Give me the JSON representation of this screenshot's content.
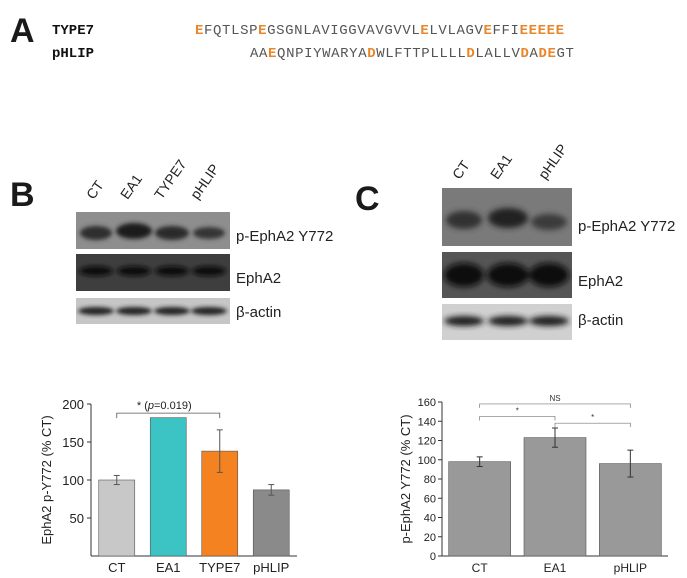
{
  "panel_a": {
    "letter": "A",
    "sequences": [
      {
        "name": "TYPE7",
        "residues": "EFQTLSPEGSGNLAVIGGVAVGVVLELVLAGVEFFIEEEEE",
        "highlight": [
          0,
          7,
          25,
          32,
          36,
          37,
          38,
          39,
          40
        ]
      },
      {
        "name": "pHLIP",
        "residues": "AAEQNPIYWARYADWLFTTPLLLLDLALLVDADEGT",
        "highlight": [
          2,
          13,
          24,
          30,
          32,
          33
        ]
      }
    ]
  },
  "panel_b": {
    "letter": "B",
    "lanes": [
      "CT",
      "EA1",
      "TYPE7",
      "pHLIP"
    ],
    "blot_labels": [
      "p-EphA2 Y772",
      "EphA2",
      "β-actin"
    ]
  },
  "panel_c": {
    "letter": "C",
    "lanes": [
      "CT",
      "EA1",
      "pHLIP"
    ],
    "blot_labels": [
      "p-EphA2 Y772",
      "EphA2",
      "β-actin"
    ]
  },
  "chart_data": [
    {
      "type": "bar",
      "panel": "B",
      "categories": [
        "CT",
        "EA1",
        "TYPE7",
        "pHLIP"
      ],
      "values": [
        100,
        182,
        138,
        87
      ],
      "errors": [
        6,
        0,
        28,
        7
      ],
      "colors": [
        "#c8c8c8",
        "#3cc3c3",
        "#f58220",
        "#8a8a8a"
      ],
      "ylabel": "EphA2 p-Y772 (% CT)",
      "ylim": [
        0,
        200
      ],
      "yticks": [
        50,
        100,
        150,
        200
      ],
      "annotation": {
        "star": "*",
        "prefix": "(",
        "italic": "p",
        "rest": "=0.019)"
      }
    },
    {
      "type": "bar",
      "panel": "C",
      "categories": [
        "CT",
        "EA1",
        "pHLIP"
      ],
      "values": [
        98,
        123,
        96
      ],
      "errors": [
        5,
        10,
        14
      ],
      "colors": [
        "#999999",
        "#999999",
        "#999999"
      ],
      "ylabel": "p-EphA2 Y772 (% CT)",
      "ylim": [
        0,
        160
      ],
      "yticks": [
        0,
        20,
        40,
        60,
        80,
        100,
        120,
        140,
        160
      ],
      "annotations": [
        "*",
        "*",
        "NS"
      ]
    }
  ]
}
